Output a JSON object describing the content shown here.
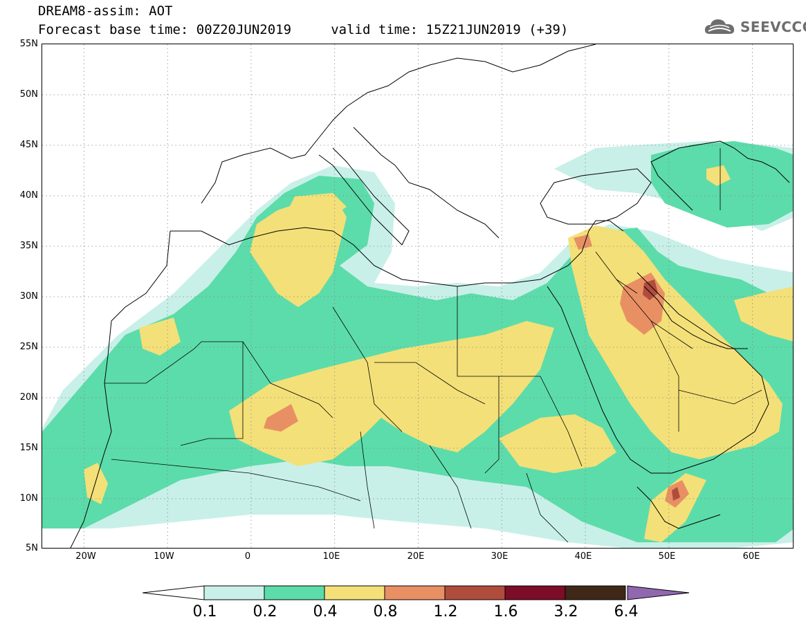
{
  "header": {
    "title": "DREAM8-assim: AOT",
    "subtitle": "Forecast base time: 00Z20JUN2019     valid time: 15Z21JUN2019 (+39)"
  },
  "logo": {
    "text": "SEEVCCC",
    "icon": "cloud-icon"
  },
  "map": {
    "latitude_labels": [
      "55N",
      "50N",
      "45N",
      "40N",
      "35N",
      "30N",
      "25N",
      "20N",
      "15N",
      "10N",
      "5N"
    ],
    "longitude_labels": [
      "20W",
      "10W",
      "0",
      "10E",
      "20E",
      "30E",
      "40E",
      "50E",
      "60E"
    ],
    "lat_range": [
      5,
      55
    ],
    "lon_range": [
      -25,
      65
    ],
    "grid": "dotted"
  },
  "colorbar": {
    "labels": [
      "0.1",
      "0.2",
      "0.4",
      "0.8",
      "1.2",
      "1.6",
      "3.2",
      "6.4"
    ],
    "colors": [
      "#c8f0e8",
      "#5cdcaa",
      "#f4e078",
      "#e89064",
      "#b04c3c",
      "#7c0c28",
      "#402818"
    ],
    "under_color": "#ffffff",
    "over_color": "#9068b0"
  },
  "palette": {
    "coast": "#000000",
    "very_low": "#c8f0e8",
    "low": "#5cdcaa",
    "moderate": "#f4e078",
    "high": "#e89064",
    "very_high": "#b04c3c"
  }
}
